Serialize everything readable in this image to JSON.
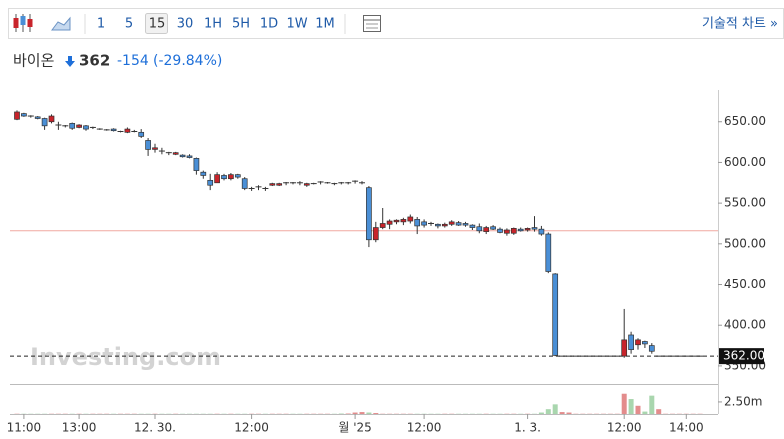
{
  "header": {
    "intervals": [
      "1",
      "5",
      "15",
      "30",
      "1H",
      "5H",
      "1D",
      "1W",
      "1M"
    ],
    "active_interval": 2,
    "tech_chart": "기술적 차트 »",
    "name": "바이온",
    "price": "362",
    "change": "-154",
    "change_pct": "(-29.84%)"
  },
  "chart_data": {
    "type": "candlestick",
    "watermark": "Investing.com",
    "categories": [
      null,
      "11:00",
      null,
      null,
      null,
      null,
      null,
      null,
      null,
      "13:00",
      null,
      null,
      null,
      null,
      null,
      null,
      null,
      null,
      null,
      null,
      "12. 30.",
      null,
      null,
      null,
      null,
      null,
      null,
      null,
      null,
      null,
      null,
      null,
      null,
      null,
      "12:00",
      null,
      null,
      null,
      null,
      null,
      null,
      null,
      null,
      null,
      null,
      null,
      null,
      null,
      null,
      "월 '25",
      null,
      null,
      null,
      null,
      null,
      null,
      null,
      null,
      null,
      "12:00",
      null,
      null,
      null,
      null,
      null,
      null,
      null,
      null,
      null,
      null,
      null,
      null,
      null,
      null,
      "1. 3.",
      null,
      null,
      null,
      null,
      null,
      null,
      null,
      null,
      null,
      null,
      null,
      null,
      null,
      "12:00",
      null,
      null,
      null,
      null,
      null,
      null,
      null,
      null,
      "14:00",
      null,
      null
    ],
    "open": [
      653,
      660,
      657,
      656,
      654,
      650,
      646,
      645,
      648,
      643,
      645,
      642,
      641,
      640,
      641,
      638,
      637,
      638,
      637,
      627,
      616,
      614,
      612,
      610,
      609,
      608,
      605,
      588,
      578,
      575,
      584,
      580,
      585,
      580,
      567,
      569,
      568,
      572,
      572,
      574,
      575,
      575,
      572,
      574,
      575,
      575,
      574,
      575,
      574,
      576,
      574,
      569,
      505,
      520,
      524,
      527,
      527,
      528,
      530,
      527,
      525,
      524,
      522,
      524,
      526,
      525,
      523,
      521,
      515,
      521,
      518,
      513,
      513,
      518,
      517,
      520,
      518,
      512,
      463,
      362,
      362,
      362,
      362,
      362,
      362,
      362,
      362,
      362,
      362,
      388,
      376,
      380,
      375,
      362,
      362,
      362,
      362,
      362,
      362,
      362
    ],
    "high": [
      664,
      661,
      658,
      657,
      655,
      659,
      650,
      646,
      649,
      647,
      646,
      644,
      642,
      641,
      642,
      639,
      643,
      640,
      641,
      630,
      623,
      618,
      613,
      613,
      610,
      610,
      606,
      590,
      586,
      588,
      586,
      587,
      586,
      582,
      570,
      572,
      570,
      575,
      575,
      576,
      576,
      577,
      575,
      575,
      577,
      576,
      575,
      576,
      576,
      578,
      577,
      571,
      527,
      544,
      530,
      530,
      532,
      536,
      533,
      530,
      527,
      525,
      526,
      529,
      528,
      527,
      524,
      525,
      522,
      523,
      520,
      519,
      520,
      520,
      520,
      534,
      522,
      514,
      464,
      362,
      362,
      362,
      362,
      362,
      362,
      362,
      362,
      362,
      420,
      392,
      384,
      381,
      378,
      362,
      362,
      362,
      362,
      362,
      362,
      362
    ],
    "low": [
      652,
      656,
      655,
      653,
      640,
      648,
      640,
      643,
      640,
      642,
      639,
      641,
      640,
      639,
      638,
      637,
      636,
      637,
      630,
      608,
      612,
      610,
      609,
      609,
      606,
      605,
      585,
      580,
      566,
      575,
      578,
      578,
      580,
      566,
      565,
      566,
      565,
      571,
      571,
      572,
      573,
      572,
      570,
      573,
      573,
      574,
      572,
      573,
      573,
      574,
      573,
      496,
      502,
      518,
      518,
      524,
      523,
      525,
      512,
      520,
      522,
      519,
      520,
      522,
      522,
      521,
      517,
      513,
      512,
      517,
      513,
      510,
      511,
      515,
      515,
      515,
      510,
      464,
      362,
      362,
      362,
      362,
      362,
      362,
      362,
      362,
      362,
      362,
      360,
      365,
      370,
      372,
      365,
      362,
      362,
      362,
      362,
      362,
      362,
      362
    ],
    "close": [
      662,
      657,
      656,
      654,
      645,
      657,
      646,
      645,
      642,
      646,
      641,
      643,
      641,
      640,
      639,
      638,
      641,
      638,
      632,
      616,
      618,
      613,
      611,
      612,
      607,
      606,
      590,
      584,
      572,
      585,
      580,
      585,
      582,
      568,
      568,
      570,
      567,
      574,
      574,
      575,
      574,
      574,
      574,
      574,
      576,
      575,
      573,
      574,
      575,
      577,
      575,
      505,
      520,
      525,
      528,
      529,
      530,
      533,
      522,
      523,
      524,
      522,
      524,
      527,
      523,
      523,
      520,
      516,
      520,
      518,
      514,
      517,
      519,
      516,
      519,
      518,
      512,
      466,
      363,
      362,
      362,
      362,
      362,
      362,
      362,
      362,
      362,
      362,
      382,
      370,
      382,
      377,
      368,
      362,
      362,
      362,
      362,
      362,
      362,
      362
    ],
    "volume": [
      0.05,
      0.05,
      0.05,
      0.05,
      0.05,
      0.05,
      0.05,
      0.05,
      0.05,
      0.05,
      0.05,
      0.05,
      0.05,
      0.05,
      0.05,
      0.05,
      0.05,
      0.05,
      0.05,
      0.05,
      0.05,
      0.05,
      0.05,
      0.05,
      0.05,
      0.05,
      0.05,
      0.05,
      0.05,
      0.05,
      0.05,
      0.05,
      0.05,
      0.05,
      0.05,
      0.05,
      0.05,
      0.05,
      0.05,
      0.05,
      0.05,
      0.05,
      0.05,
      0.05,
      0.05,
      0.05,
      0.05,
      0.1,
      0.1,
      0.3,
      0.4,
      0.3,
      0.2,
      0.05,
      0.05,
      0.05,
      0.05,
      0.05,
      0.05,
      0.05,
      0.05,
      0.05,
      0.05,
      0.05,
      0.05,
      0.05,
      0.05,
      0.05,
      0.05,
      0.05,
      0.05,
      0.05,
      0.05,
      0.05,
      0.05,
      0.05,
      0.3,
      1.0,
      2.0,
      0.4,
      0.3,
      0.05,
      0.05,
      0.05,
      0.05,
      0.05,
      0.05,
      0.05,
      4.2,
      3.1,
      1.7,
      0.5,
      3.8,
      1.0,
      0.05,
      0.05,
      0.05,
      0.05,
      0.05,
      0.05
    ],
    "up_color": "#c8242b",
    "down_color": "#4a8fd6",
    "volume_up_color": "#e38c8c",
    "volume_down_color": "#a9d6ae",
    "ylim": [
      329,
      689
    ],
    "yticks": [
      {
        "value": 350,
        "label": "350.00"
      },
      {
        "value": 400,
        "label": "400.00"
      },
      {
        "value": 450,
        "label": "450.00"
      },
      {
        "value": 500,
        "label": "500.00"
      },
      {
        "value": 550,
        "label": "550.00"
      },
      {
        "value": 600,
        "label": "600.00"
      },
      {
        "value": 650,
        "label": "650.00"
      }
    ],
    "volume_lim": [
      0,
      5.8
    ],
    "volume_ticks": [
      {
        "value": 2.5,
        "label": "2.50m"
      }
    ],
    "reference_line": 516,
    "reference_color": "#f0a8a0",
    "last_price": {
      "value": 362,
      "label": "362.00"
    }
  }
}
